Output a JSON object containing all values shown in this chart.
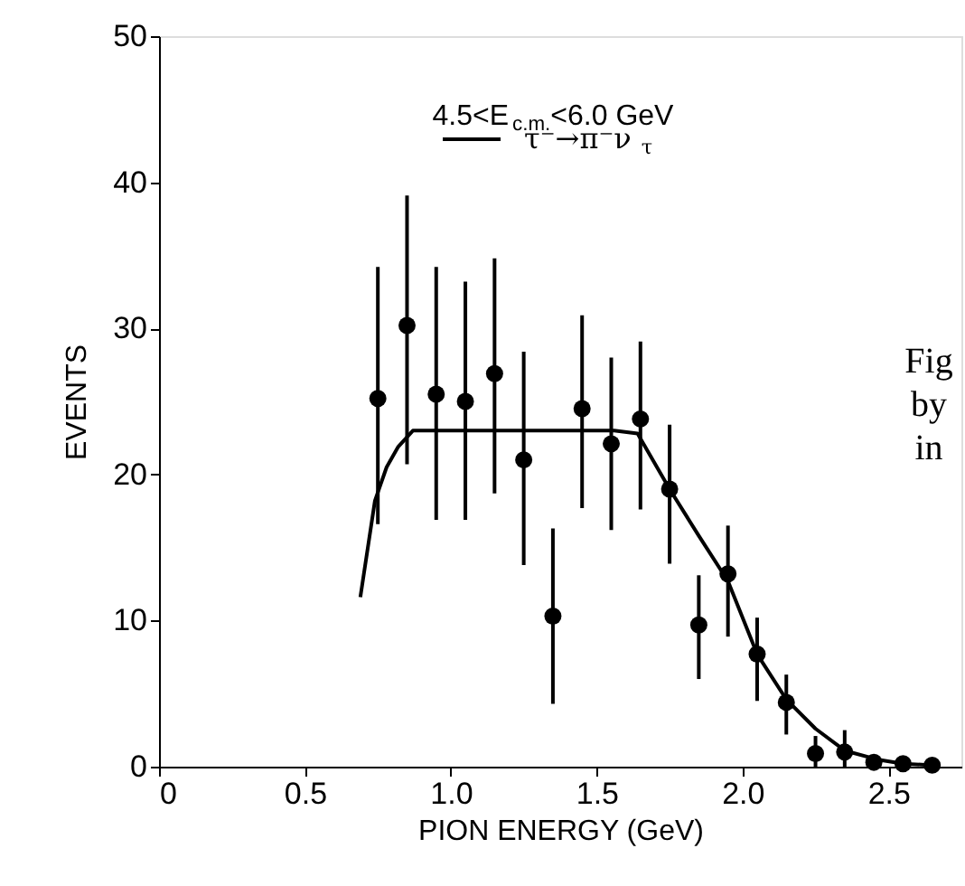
{
  "chart_data": {
    "type": "scatter",
    "xlabel": "PION ENERGY   (GeV)",
    "ylabel": "EVENTS",
    "xlim": [
      0,
      2.75
    ],
    "xticks": [
      0,
      0.5,
      {
        "value": 1.0,
        "label": "1.0"
      },
      1.5,
      {
        "value": 2.0,
        "label": "2.0"
      },
      2.5
    ],
    "ylim": [
      0,
      50
    ],
    "yticks": [
      0,
      10,
      20,
      30,
      40,
      50
    ],
    "grid": false,
    "legend": "top",
    "marker": "circle",
    "annotations": [
      "4.5<E$_{c.m.}$<6.0 GeV",
      "Fig\nby\nin"
    ],
    "series": [
      {
        "color": "#000000",
        "x": [
          0.75,
          0.85,
          0.95,
          1.05,
          1.15,
          1.25,
          1.35,
          1.45,
          1.55,
          1.65,
          1.75,
          1.85,
          1.95,
          2.05,
          2.15,
          2.25,
          2.35,
          2.45,
          2.55,
          2.65
        ],
        "values": [
          25.2,
          30.2,
          25.5,
          25.0,
          26.9,
          21.0,
          10.3,
          24.5,
          22.1,
          23.8,
          19.0,
          9.7,
          13.2,
          7.7,
          4.4,
          0.9,
          1.0,
          0.3,
          0.2,
          0.1
        ],
        "errors": [
          [
            16.6,
            34.2
          ],
          [
            20.7,
            39.1
          ],
          [
            16.9,
            34.2
          ],
          [
            16.9,
            33.2
          ],
          [
            18.7,
            34.8
          ],
          [
            13.8,
            28.4
          ],
          [
            4.3,
            16.3
          ],
          [
            17.7,
            30.9
          ],
          [
            16.2,
            28.0
          ],
          [
            17.6,
            29.1
          ],
          [
            13.9,
            23.4
          ],
          [
            6.0,
            13.1
          ],
          [
            8.9,
            16.5
          ],
          [
            4.5,
            10.2
          ],
          [
            2.2,
            6.3
          ],
          [
            0,
            2.1
          ],
          [
            0,
            2.5
          ],
          null,
          null,
          null
        ]
      },
      {
        "type": "line",
        "name": "τ⁻→π⁻ν$_{τ}$",
        "color": "#000000",
        "line_style": "solid",
        "marker": "none",
        "x": [
          0.69,
          0.74,
          0.78,
          0.82,
          0.87,
          1.0,
          1.2,
          1.4,
          1.56,
          1.64,
          1.75,
          1.85,
          1.95,
          2.05,
          2.15,
          2.25,
          2.35,
          2.46,
          2.55,
          2.65
        ],
        "values": [
          11.6,
          18.2,
          20.5,
          21.9,
          23.0,
          23.0,
          23.0,
          23.0,
          23.0,
          22.8,
          19.0,
          15.8,
          12.7,
          7.7,
          4.6,
          2.6,
          1.1,
          0.5,
          0.2,
          0.1
        ]
      }
    ]
  }
}
